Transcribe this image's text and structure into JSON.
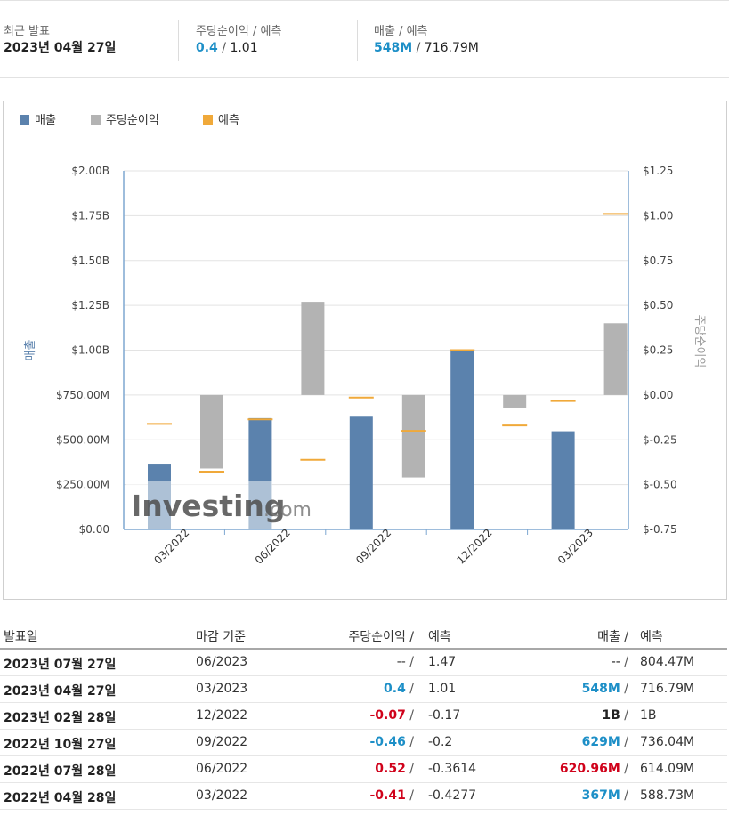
{
  "summary": {
    "latest_label": "최근 발표",
    "latest_date": "2023년 04월 27일",
    "eps_label": "주당순이익",
    "forecast_label": "예측",
    "slash": "/",
    "eps_actual": "0.4",
    "eps_forecast": "1.01",
    "revenue_label": "매출",
    "revenue_actual": "548M",
    "revenue_forecast": "716.79M"
  },
  "legend": {
    "revenue": "매출",
    "eps": "주당순이익",
    "forecast": "예측"
  },
  "colors": {
    "revenue": "#5b82ad",
    "eps": "#b3b3b3",
    "forecast": "#f0a93a",
    "positive": "#1d8fc7",
    "negative": "#d0021b"
  },
  "chart_data": {
    "type": "bar",
    "categories": [
      "03/2022",
      "06/2022",
      "09/2022",
      "12/2022",
      "03/2023"
    ],
    "left_axis": {
      "label": "매출",
      "ticks": [
        "$0.00",
        "$250.00M",
        "$500.00M",
        "$750.00M",
        "$1.00B",
        "$1.25B",
        "$1.50B",
        "$1.75B",
        "$2.00B"
      ],
      "ylim": [
        0,
        2000
      ]
    },
    "right_axis": {
      "label": "주당순이익",
      "ticks": [
        "$-0.75",
        "$-0.50",
        "$-0.25",
        "$0.00",
        "$0.25",
        "$0.50",
        "$0.75",
        "$1.00",
        "$1.25"
      ],
      "ylim": [
        -0.75,
        1.25
      ]
    },
    "series": [
      {
        "name": "매출",
        "axis": "left",
        "unit": "M",
        "values": [
          367,
          620.96,
          629,
          1000,
          548
        ]
      },
      {
        "name": "매출 예측",
        "axis": "left",
        "unit": "M",
        "values": [
          588.73,
          614.09,
          736.04,
          1000,
          716.79
        ]
      },
      {
        "name": "주당순이익",
        "axis": "right",
        "values": [
          -0.41,
          0.52,
          -0.46,
          -0.07,
          0.4
        ]
      },
      {
        "name": "주당순이익 예측",
        "axis": "right",
        "values": [
          -0.4277,
          -0.3614,
          -0.2,
          -0.17,
          1.01
        ]
      }
    ],
    "watermark": "Investing.com"
  },
  "table": {
    "headers": {
      "date": "발표일",
      "period": "마감 기준",
      "eps": "주당순이익 /",
      "eps_forecast": "예측",
      "revenue": "매출 /",
      "revenue_forecast": "예측"
    },
    "rows": [
      {
        "date": "2023년 07월 27일",
        "period": "06/2023",
        "eps": "--",
        "eps_sign": "none",
        "eps_forecast": "1.47",
        "revenue": "--",
        "rev_sign": "none",
        "revenue_forecast": "804.47M"
      },
      {
        "date": "2023년 04월 27일",
        "period": "03/2023",
        "eps": "0.4",
        "eps_sign": "pos",
        "eps_forecast": "1.01",
        "revenue": "548M",
        "rev_sign": "pos",
        "revenue_forecast": "716.79M"
      },
      {
        "date": "2023년 02월 28일",
        "period": "12/2022",
        "eps": "-0.07",
        "eps_sign": "neg",
        "eps_forecast": "-0.17",
        "revenue": "1B",
        "rev_sign": "none",
        "revenue_forecast": "1B"
      },
      {
        "date": "2022년 10월 27일",
        "period": "09/2022",
        "eps": "-0.46",
        "eps_sign": "pos",
        "eps_forecast": "-0.2",
        "revenue": "629M",
        "rev_sign": "pos",
        "revenue_forecast": "736.04M"
      },
      {
        "date": "2022년 07월 28일",
        "period": "06/2022",
        "eps": "0.52",
        "eps_sign": "neg",
        "eps_forecast": "-0.3614",
        "revenue": "620.96M",
        "rev_sign": "neg",
        "revenue_forecast": "614.09M"
      },
      {
        "date": "2022년 04월 28일",
        "period": "03/2022",
        "eps": "-0.41",
        "eps_sign": "neg",
        "eps_forecast": "-0.4277",
        "revenue": "367M",
        "rev_sign": "pos",
        "revenue_forecast": "588.73M"
      }
    ]
  }
}
